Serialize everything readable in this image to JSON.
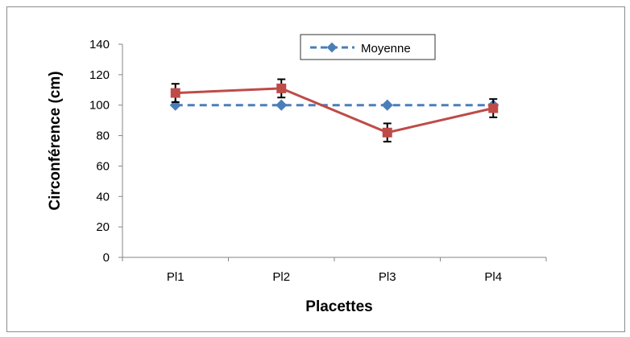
{
  "chart_data": {
    "type": "line",
    "categories": [
      "Pl1",
      "Pl2",
      "Pl3",
      "Pl4"
    ],
    "xlabel": "Placettes",
    "ylabel": "Circonférence (cm)",
    "ylim": [
      0,
      140
    ],
    "yticks": [
      0,
      20,
      40,
      60,
      80,
      100,
      120,
      140
    ],
    "grid": false,
    "legend_position": "top-right",
    "series": [
      {
        "name": "Moyenne",
        "values": [
          100,
          100,
          100,
          100
        ],
        "color": "#4a7ebb",
        "line_style": "dashed",
        "marker": "diamond"
      },
      {
        "values": [
          108,
          111,
          82,
          98
        ],
        "error": [
          6,
          6,
          6,
          6
        ],
        "color": "#be4b48",
        "line_style": "solid",
        "marker": "square"
      }
    ]
  }
}
